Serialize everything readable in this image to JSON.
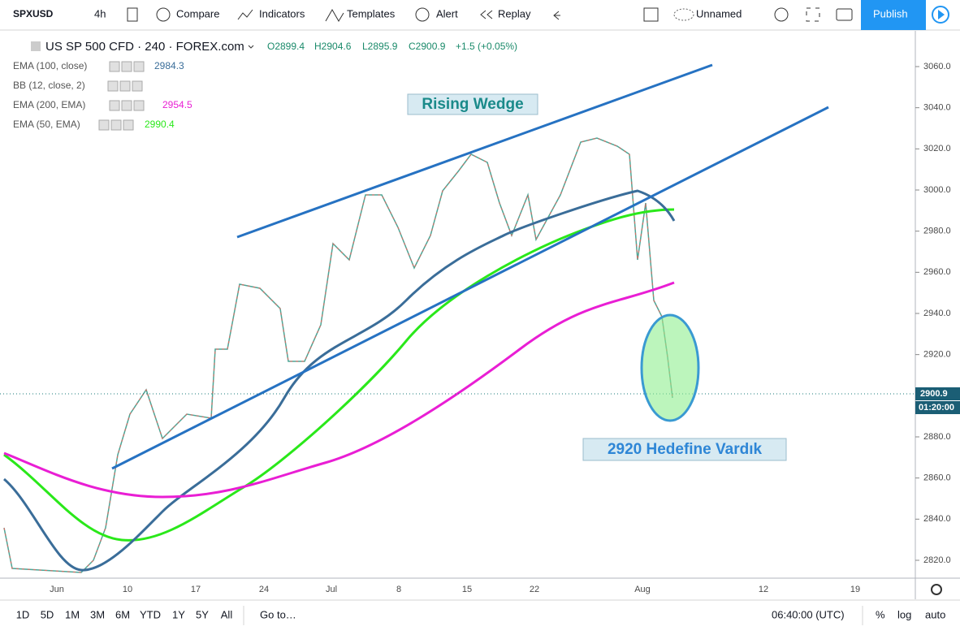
{
  "toolbar": {
    "symbol": "SPXUSD",
    "interval": "4h",
    "compare": "Compare",
    "indicators": "Indicators",
    "templates": "Templates",
    "alert": "Alert",
    "replay": "Replay",
    "layout": "Unnamed",
    "publish": "Publish"
  },
  "legend": {
    "title": "US SP 500 CFD · 240 · FOREX.com",
    "ohlc": [
      "O2899.4",
      "H2904.6",
      "L2895.9",
      "C2900.9",
      "+1.5 (+0.05%)"
    ],
    "studies": [
      {
        "name": "EMA (100, close)",
        "value": 2984.3
      },
      {
        "name": "BB (12, close, 2)"
      },
      {
        "name": "EMA (200, EMA)",
        "value": 2954.5
      },
      {
        "name": "EMA (50, EMA)",
        "value": 2990.4
      }
    ]
  },
  "annotations": {
    "pattern": "Rising Wedge",
    "target": "2920 Hedefine Vardık"
  },
  "price_axis": {
    "ticks": [
      {
        "value": 3060,
        "label": "3060.0"
      },
      {
        "value": 3040,
        "label": "3040.0"
      },
      {
        "value": 3020,
        "label": "3020.0"
      },
      {
        "value": 3000,
        "label": "3000.0"
      },
      {
        "value": 2980,
        "label": "2980.0"
      },
      {
        "value": 2960,
        "label": "2960.0"
      },
      {
        "value": 2940,
        "label": "2940.0"
      },
      {
        "value": 2920,
        "label": "2920.0"
      },
      {
        "value": 2880,
        "label": "2880.0"
      },
      {
        "value": 2860,
        "label": "2860.0"
      },
      {
        "value": 2840,
        "label": "2840.0"
      },
      {
        "value": 2820,
        "label": "2820.0"
      }
    ],
    "current": {
      "value": 2900.9,
      "label": "2900.9"
    },
    "countdown": "01:20:00"
  },
  "date_axis": {
    "labels": [
      "Jun",
      "10",
      "17",
      "24",
      "Jul",
      "8",
      "15",
      "22",
      "Aug",
      "12",
      "19"
    ]
  },
  "bottom_bar": {
    "ranges": [
      "1D",
      "5D",
      "1M",
      "3M",
      "6M",
      "YTD",
      "1Y",
      "5Y",
      "All"
    ],
    "goto": "Go to…",
    "time": "06:40:00 (UTC)",
    "percent": "%",
    "log": "log",
    "auto": "auto"
  }
}
